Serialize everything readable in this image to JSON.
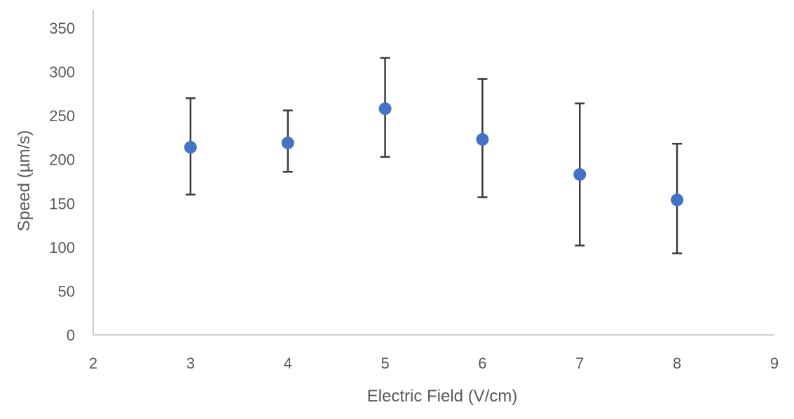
{
  "chart_data": {
    "type": "scatter",
    "title": "",
    "xlabel": "Electric Field (V/cm)",
    "ylabel": "Speed (µm/s)",
    "xlim": [
      2,
      9
    ],
    "ylim": [
      0,
      350
    ],
    "xticks": [
      "2",
      "3",
      "4",
      "5",
      "6",
      "7",
      "8",
      "9"
    ],
    "yticks": [
      "0",
      "50",
      "100",
      "150",
      "200",
      "250",
      "300",
      "350"
    ],
    "grid": false,
    "legend": "none",
    "series": [
      {
        "x": [
          3,
          4,
          5,
          6,
          7,
          8
        ],
        "y": [
          214,
          219,
          258,
          223,
          183,
          154
        ],
        "error_lower": [
          160,
          186,
          203,
          157,
          102,
          93
        ],
        "error_upper": [
          270,
          256,
          316,
          292,
          264,
          218
        ],
        "color": "#4472c4"
      }
    ],
    "colors": {
      "marker": "#4472c4",
      "error_bar": "#3a3a3a",
      "axis": "#bfbfbf",
      "text": "#595959"
    }
  }
}
